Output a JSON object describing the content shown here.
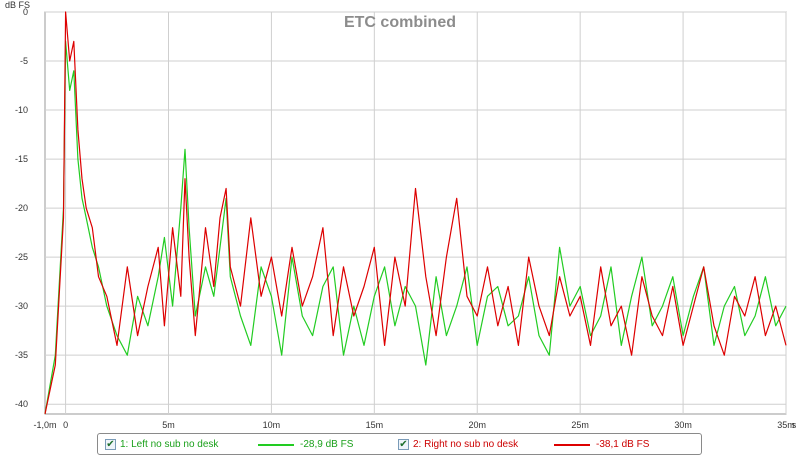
{
  "chart_data": {
    "type": "line",
    "title": "ETC combined",
    "ylabel": "dB FS",
    "xlabel": "",
    "x_unit_label": "s",
    "xlim": [
      -0.001,
      0.035
    ],
    "ylim": [
      -41,
      0
    ],
    "grid": true,
    "x_ticks": [
      {
        "value": -0.001,
        "label": "-1,0m"
      },
      {
        "value": 0,
        "label": "0"
      },
      {
        "value": 0.005,
        "label": "5m"
      },
      {
        "value": 0.01,
        "label": "10m"
      },
      {
        "value": 0.015,
        "label": "15m"
      },
      {
        "value": 0.02,
        "label": "20m"
      },
      {
        "value": 0.025,
        "label": "25m"
      },
      {
        "value": 0.03,
        "label": "30m"
      },
      {
        "value": 0.035,
        "label": "35m"
      }
    ],
    "y_ticks": [
      {
        "value": 0,
        "label": "0"
      },
      {
        "value": -5,
        "label": "-5"
      },
      {
        "value": -10,
        "label": "-10"
      },
      {
        "value": -15,
        "label": "-15"
      },
      {
        "value": -20,
        "label": "-20"
      },
      {
        "value": -25,
        "label": "-25"
      },
      {
        "value": -30,
        "label": "-30"
      },
      {
        "value": -35,
        "label": "-35"
      },
      {
        "value": -40,
        "label": "-40"
      }
    ],
    "series": [
      {
        "name": "1: Left no sub no desk",
        "value_label": "-28,9 dB FS",
        "color": "#22cc22",
        "x": [
          -0.001,
          -0.0005,
          -0.0001,
          0.0,
          0.0002,
          0.0004,
          0.0006,
          0.0008,
          0.001,
          0.0013,
          0.0016,
          0.002,
          0.0025,
          0.003,
          0.0035,
          0.004,
          0.0045,
          0.0048,
          0.0052,
          0.0056,
          0.0058,
          0.006,
          0.0063,
          0.0068,
          0.0072,
          0.0075,
          0.0078,
          0.008,
          0.0085,
          0.009,
          0.0095,
          0.01,
          0.0105,
          0.011,
          0.0115,
          0.012,
          0.0125,
          0.013,
          0.0135,
          0.014,
          0.0145,
          0.015,
          0.0155,
          0.016,
          0.0165,
          0.017,
          0.0175,
          0.018,
          0.0185,
          0.019,
          0.0195,
          0.02,
          0.0205,
          0.021,
          0.0215,
          0.022,
          0.0225,
          0.023,
          0.0235,
          0.024,
          0.0245,
          0.025,
          0.0255,
          0.026,
          0.0265,
          0.027,
          0.0275,
          0.028,
          0.0285,
          0.029,
          0.0295,
          0.03,
          0.0305,
          0.031,
          0.0315,
          0.032,
          0.0325,
          0.033,
          0.0335,
          0.034,
          0.0345,
          0.035
        ],
        "y": [
          -41,
          -35,
          -20,
          -3,
          -8,
          -6,
          -15,
          -19,
          -21,
          -24,
          -26,
          -30,
          -33,
          -35,
          -29,
          -32,
          -27,
          -23,
          -30,
          -20,
          -14,
          -22,
          -31,
          -26,
          -29,
          -24,
          -19,
          -27,
          -31,
          -34,
          -26,
          -29,
          -35,
          -25,
          -31,
          -33,
          -28,
          -26,
          -35,
          -30,
          -34,
          -29,
          -26,
          -32,
          -28,
          -30,
          -36,
          -27,
          -33,
          -30,
          -26,
          -34,
          -29,
          -28,
          -32,
          -31,
          -27,
          -33,
          -35,
          -24,
          -30,
          -28,
          -33,
          -31,
          -26,
          -34,
          -29,
          -25,
          -32,
          -30,
          -27,
          -33,
          -29,
          -26,
          -34,
          -30,
          -28,
          -33,
          -31,
          -27,
          -32,
          -30
        ]
      },
      {
        "name": "2: Right no sub no desk",
        "value_label": "-38,1 dB FS",
        "color": "#dd0000",
        "x": [
          -0.001,
          -0.0005,
          -0.0001,
          0.0,
          0.0002,
          0.0004,
          0.0006,
          0.0008,
          0.001,
          0.0013,
          0.0016,
          0.002,
          0.0025,
          0.003,
          0.0035,
          0.004,
          0.0045,
          0.0048,
          0.0052,
          0.0056,
          0.0058,
          0.006,
          0.0063,
          0.0068,
          0.0072,
          0.0075,
          0.0078,
          0.008,
          0.0085,
          0.009,
          0.0095,
          0.01,
          0.0105,
          0.011,
          0.0115,
          0.012,
          0.0125,
          0.013,
          0.0135,
          0.014,
          0.0145,
          0.015,
          0.0155,
          0.016,
          0.0165,
          0.017,
          0.0175,
          0.018,
          0.0185,
          0.019,
          0.0195,
          0.02,
          0.0205,
          0.021,
          0.0215,
          0.022,
          0.0225,
          0.023,
          0.0235,
          0.024,
          0.0245,
          0.025,
          0.0255,
          0.026,
          0.0265,
          0.027,
          0.0275,
          0.028,
          0.0285,
          0.029,
          0.0295,
          0.03,
          0.0305,
          0.031,
          0.0315,
          0.032,
          0.0325,
          0.033,
          0.0335,
          0.034,
          0.0345,
          0.035
        ],
        "y": [
          -41,
          -36,
          -21,
          0,
          -5,
          -3,
          -12,
          -17,
          -20,
          -22,
          -27,
          -29,
          -34,
          -26,
          -33,
          -28,
          -24,
          -32,
          -22,
          -29,
          -17,
          -25,
          -33,
          -22,
          -28,
          -21,
          -18,
          -26,
          -30,
          -21,
          -29,
          -25,
          -31,
          -24,
          -30,
          -27,
          -22,
          -33,
          -26,
          -31,
          -28,
          -24,
          -34,
          -25,
          -30,
          -18,
          -27,
          -33,
          -25,
          -19,
          -29,
          -31,
          -26,
          -32,
          -28,
          -34,
          -25,
          -30,
          -33,
          -27,
          -31,
          -29,
          -34,
          -26,
          -32,
          -30,
          -35,
          -27,
          -31,
          -33,
          -28,
          -34,
          -30,
          -26,
          -32,
          -35,
          -29,
          -31,
          -27,
          -33,
          -30,
          -34
        ]
      }
    ]
  }
}
